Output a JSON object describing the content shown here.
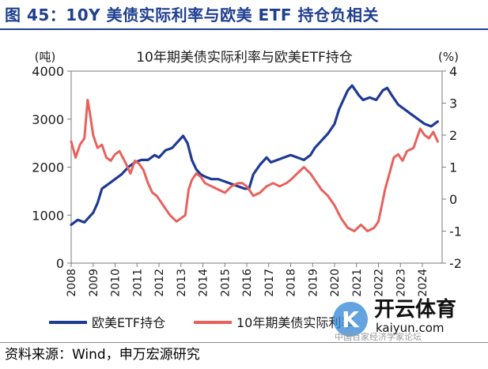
{
  "figure": {
    "title": "图 45：10Y 美债实际利率与欧美 ETF 持仓负相关",
    "source": "资料来源：Wind，申万宏源研究"
  },
  "watermark": {
    "brand": "开云体育",
    "domain": "kaiyun.com",
    "overlay_text": "中国百家经济学家论坛"
  },
  "colors": {
    "etf": "#1f3a93",
    "rate": "#e8615c",
    "axis": "#7a7a7a"
  },
  "chart_data": {
    "type": "line",
    "title": "10年期美债实际利率与欧美ETF持仓",
    "y_left_unit": "(吨)",
    "y_right_unit": "(%)",
    "ylim_left": [
      0,
      4000
    ],
    "ylim_right": [
      -2,
      4
    ],
    "left_ticks": [
      0,
      1000,
      2000,
      3000,
      4000
    ],
    "right_ticks": [
      -2,
      -1,
      0,
      1,
      2,
      3,
      4
    ],
    "xlim": [
      2008,
      2024.9
    ],
    "x_ticks": [
      "2008",
      "2009",
      "2010",
      "2011",
      "2012",
      "2013",
      "2014",
      "2015",
      "2016",
      "2017",
      "2018",
      "2019",
      "2020",
      "2021",
      "2022",
      "2023",
      "2024"
    ],
    "legend_position": "bottom",
    "series": [
      {
        "name": "欧美ETF持仓",
        "axis": "left",
        "points": [
          [
            2008,
            800
          ],
          [
            2008.3,
            900
          ],
          [
            2008.6,
            850
          ],
          [
            2008.8,
            950
          ],
          [
            2009,
            1050
          ],
          [
            2009.2,
            1250
          ],
          [
            2009.4,
            1550
          ],
          [
            2009.7,
            1650
          ],
          [
            2010,
            1750
          ],
          [
            2010.3,
            1850
          ],
          [
            2010.6,
            2000
          ],
          [
            2010.9,
            2100
          ],
          [
            2011.2,
            2150
          ],
          [
            2011.5,
            2150
          ],
          [
            2011.8,
            2250
          ],
          [
            2012,
            2200
          ],
          [
            2012.3,
            2350
          ],
          [
            2012.6,
            2400
          ],
          [
            2012.9,
            2550
          ],
          [
            2013.1,
            2650
          ],
          [
            2013.3,
            2500
          ],
          [
            2013.5,
            2150
          ],
          [
            2013.7,
            1950
          ],
          [
            2013.9,
            1850
          ],
          [
            2014.1,
            1800
          ],
          [
            2014.4,
            1750
          ],
          [
            2014.7,
            1750
          ],
          [
            2015,
            1700
          ],
          [
            2015.3,
            1650
          ],
          [
            2015.6,
            1600
          ],
          [
            2015.9,
            1550
          ],
          [
            2016.1,
            1550
          ],
          [
            2016.3,
            1850
          ],
          [
            2016.6,
            2050
          ],
          [
            2016.9,
            2200
          ],
          [
            2017.1,
            2100
          ],
          [
            2017.4,
            2150
          ],
          [
            2017.7,
            2200
          ],
          [
            2018,
            2250
          ],
          [
            2018.3,
            2200
          ],
          [
            2018.6,
            2150
          ],
          [
            2018.9,
            2250
          ],
          [
            2019.1,
            2400
          ],
          [
            2019.4,
            2550
          ],
          [
            2019.7,
            2700
          ],
          [
            2020,
            2900
          ],
          [
            2020.2,
            3200
          ],
          [
            2020.4,
            3400
          ],
          [
            2020.6,
            3600
          ],
          [
            2020.8,
            3700
          ],
          [
            2020.95,
            3600
          ],
          [
            2021.1,
            3500
          ],
          [
            2021.3,
            3400
          ],
          [
            2021.6,
            3450
          ],
          [
            2021.9,
            3400
          ],
          [
            2022.2,
            3600
          ],
          [
            2022.4,
            3650
          ],
          [
            2022.6,
            3500
          ],
          [
            2022.9,
            3300
          ],
          [
            2023.2,
            3200
          ],
          [
            2023.5,
            3100
          ],
          [
            2023.8,
            3000
          ],
          [
            2024.1,
            2900
          ],
          [
            2024.4,
            2850
          ],
          [
            2024.7,
            2950
          ]
        ]
      },
      {
        "name": "10年期美债实际利率",
        "axis": "right",
        "points": [
          [
            2008,
            1.8
          ],
          [
            2008.2,
            1.3
          ],
          [
            2008.4,
            1.7
          ],
          [
            2008.6,
            1.9
          ],
          [
            2008.75,
            3.1
          ],
          [
            2008.85,
            2.7
          ],
          [
            2009,
            2.0
          ],
          [
            2009.2,
            1.6
          ],
          [
            2009.4,
            1.7
          ],
          [
            2009.6,
            1.3
          ],
          [
            2009.8,
            1.2
          ],
          [
            2010,
            1.4
          ],
          [
            2010.2,
            1.5
          ],
          [
            2010.5,
            1.1
          ],
          [
            2010.7,
            0.8
          ],
          [
            2010.9,
            1.2
          ],
          [
            2011.1,
            1.1
          ],
          [
            2011.3,
            0.9
          ],
          [
            2011.5,
            0.5
          ],
          [
            2011.7,
            0.2
          ],
          [
            2011.9,
            0.1
          ],
          [
            2012.1,
            -0.1
          ],
          [
            2012.3,
            -0.3
          ],
          [
            2012.5,
            -0.5
          ],
          [
            2012.8,
            -0.7
          ],
          [
            2013,
            -0.6
          ],
          [
            2013.2,
            -0.5
          ],
          [
            2013.35,
            0.3
          ],
          [
            2013.5,
            0.6
          ],
          [
            2013.7,
            0.8
          ],
          [
            2013.9,
            0.7
          ],
          [
            2014.1,
            0.5
          ],
          [
            2014.4,
            0.4
          ],
          [
            2014.7,
            0.3
          ],
          [
            2015,
            0.2
          ],
          [
            2015.3,
            0.4
          ],
          [
            2015.6,
            0.5
          ],
          [
            2015.8,
            0.5
          ],
          [
            2016,
            0.4
          ],
          [
            2016.3,
            0.1
          ],
          [
            2016.6,
            0.2
          ],
          [
            2016.9,
            0.4
          ],
          [
            2017.2,
            0.5
          ],
          [
            2017.5,
            0.4
          ],
          [
            2017.8,
            0.5
          ],
          [
            2018,
            0.6
          ],
          [
            2018.3,
            0.8
          ],
          [
            2018.6,
            1.0
          ],
          [
            2018.9,
            0.8
          ],
          [
            2019.1,
            0.6
          ],
          [
            2019.4,
            0.3
          ],
          [
            2019.7,
            0.1
          ],
          [
            2020,
            -0.2
          ],
          [
            2020.3,
            -0.6
          ],
          [
            2020.6,
            -0.9
          ],
          [
            2020.9,
            -1.0
          ],
          [
            2021.2,
            -0.8
          ],
          [
            2021.5,
            -1.0
          ],
          [
            2021.8,
            -0.9
          ],
          [
            2022,
            -0.7
          ],
          [
            2022.15,
            -0.2
          ],
          [
            2022.3,
            0.3
          ],
          [
            2022.5,
            0.8
          ],
          [
            2022.7,
            1.3
          ],
          [
            2022.9,
            1.4
          ],
          [
            2023.1,
            1.2
          ],
          [
            2023.3,
            1.5
          ],
          [
            2023.6,
            1.6
          ],
          [
            2023.9,
            2.2
          ],
          [
            2024.1,
            2.0
          ],
          [
            2024.3,
            1.9
          ],
          [
            2024.5,
            2.1
          ],
          [
            2024.7,
            1.8
          ]
        ]
      }
    ]
  }
}
